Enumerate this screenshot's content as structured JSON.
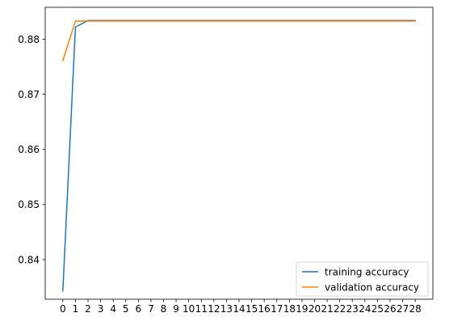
{
  "chart_data": {
    "type": "line",
    "title": "",
    "xlabel": "",
    "ylabel": "",
    "x": [
      0,
      1,
      2,
      3,
      4,
      5,
      6,
      7,
      8,
      9,
      10,
      11,
      12,
      13,
      14,
      15,
      16,
      17,
      18,
      19,
      20,
      21,
      22,
      23,
      24,
      25,
      26,
      27,
      28
    ],
    "xlim": [
      -1.4,
      29.4
    ],
    "ylim": [
      0.8328,
      0.8858
    ],
    "yticks": [
      0.84,
      0.85,
      0.86,
      0.87,
      0.88
    ],
    "ytick_labels": [
      "0.84",
      "0.85",
      "0.86",
      "0.87",
      "0.88"
    ],
    "xtick_labels": [
      "0",
      "1",
      "2",
      "3",
      "4",
      "5",
      "6",
      "7",
      "8",
      "9",
      "10",
      "11",
      "12",
      "13",
      "14",
      "15",
      "16",
      "17",
      "18",
      "19",
      "20",
      "21",
      "22",
      "23",
      "24",
      "25",
      "26",
      "27",
      "28"
    ],
    "grid": false,
    "legend_position": "lower-right",
    "series": [
      {
        "name": "training accuracy",
        "color": "#1f77b4",
        "values": [
          0.8343,
          0.8822,
          0.8834,
          0.8834,
          0.8834,
          0.8834,
          0.8834,
          0.8834,
          0.8834,
          0.8834,
          0.8834,
          0.8834,
          0.8834,
          0.8834,
          0.8834,
          0.8834,
          0.8834,
          0.8834,
          0.8834,
          0.8834,
          0.8834,
          0.8834,
          0.8834,
          0.8834,
          0.8834,
          0.8834,
          0.8834,
          0.8834,
          0.8834
        ]
      },
      {
        "name": "validation accuracy",
        "color": "#ff7f0e",
        "values": [
          0.8761,
          0.8833,
          0.8833,
          0.8833,
          0.8833,
          0.8833,
          0.8833,
          0.8833,
          0.8833,
          0.8833,
          0.8833,
          0.8833,
          0.8833,
          0.8833,
          0.8833,
          0.8833,
          0.8833,
          0.8833,
          0.8833,
          0.8833,
          0.8833,
          0.8833,
          0.8833,
          0.8833,
          0.8833,
          0.8833,
          0.8833,
          0.8833,
          0.8833
        ]
      }
    ]
  }
}
